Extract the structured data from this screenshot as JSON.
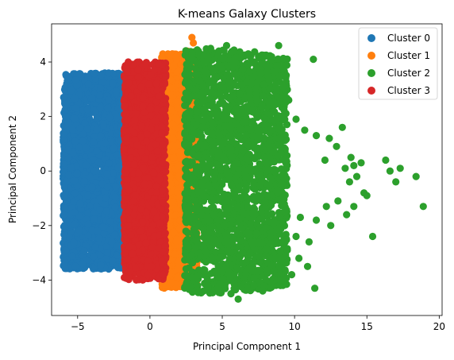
{
  "chart_data": {
    "type": "scatter",
    "title": "K-means Galaxy Clusters",
    "xlabel": "Principal Component 1",
    "ylabel": "Principal Component 2",
    "xlim": [
      -6.8,
      20.2
    ],
    "ylim": [
      -5.3,
      5.4
    ],
    "xticks": [
      -5,
      0,
      5,
      10,
      15,
      20
    ],
    "yticks": [
      -4,
      -2,
      0,
      2,
      4
    ],
    "grid": false,
    "legend_position": "top-right",
    "series": [
      {
        "name": "Cluster 0",
        "color": "#1f77b4",
        "region": {
          "x_min": -6.0,
          "x_max": -1.7,
          "y_min": -3.6,
          "y_max": 3.5,
          "x_center": -1.7
        },
        "outliers": [
          [
            -2.0,
            3.3
          ],
          [
            -1.9,
            -3.5
          ]
        ]
      },
      {
        "name": "Cluster 1",
        "color": "#ff7f0e",
        "region": {
          "x_min": 0.8,
          "x_max": 3.3,
          "y_min": -4.2,
          "y_max": 4.3,
          "x_center": 0.8
        },
        "outliers": [
          [
            2.9,
            4.9
          ],
          [
            3.0,
            4.7
          ],
          [
            2.6,
            4.4
          ],
          [
            1.2,
            -4.2
          ],
          [
            1.5,
            -4.1
          ]
        ]
      },
      {
        "name": "Cluster 2",
        "color": "#2ca02c",
        "region": {
          "x_min": 2.4,
          "x_max": 9.5,
          "y_min": -4.6,
          "y_max": 4.3,
          "x_center": 3.6
        },
        "outliers": [
          [
            5.3,
            4.6
          ],
          [
            6.8,
            4.3
          ],
          [
            8.9,
            4.6
          ],
          [
            11.3,
            4.1
          ],
          [
            4.2,
            4.5
          ],
          [
            9.2,
            3.1
          ],
          [
            9.6,
            2.6
          ],
          [
            10.1,
            1.9
          ],
          [
            10.7,
            1.5
          ],
          [
            11.5,
            1.3
          ],
          [
            12.4,
            1.2
          ],
          [
            13.3,
            1.6
          ],
          [
            12.1,
            0.4
          ],
          [
            12.9,
            0.9
          ],
          [
            13.9,
            0.5
          ],
          [
            13.5,
            0.1
          ],
          [
            14.1,
            0.2
          ],
          [
            14.6,
            0.3
          ],
          [
            13.8,
            -0.4
          ],
          [
            14.3,
            -0.2
          ],
          [
            14.8,
            -0.8
          ],
          [
            15.0,
            -0.9
          ],
          [
            16.3,
            0.4
          ],
          [
            16.6,
            0.0
          ],
          [
            17.0,
            -0.4
          ],
          [
            17.3,
            0.1
          ],
          [
            18.4,
            -0.2
          ],
          [
            18.9,
            -1.3
          ],
          [
            15.4,
            -2.4
          ],
          [
            14.1,
            -1.3
          ],
          [
            13.0,
            -1.1
          ],
          [
            12.2,
            -1.3
          ],
          [
            13.6,
            -1.6
          ],
          [
            12.5,
            -2.0
          ],
          [
            11.5,
            -1.8
          ],
          [
            10.4,
            -1.7
          ],
          [
            10.1,
            -2.4
          ],
          [
            11.0,
            -2.6
          ],
          [
            9.5,
            -2.9
          ],
          [
            10.3,
            -3.2
          ],
          [
            9.8,
            -3.8
          ],
          [
            11.4,
            -4.3
          ],
          [
            10.9,
            -3.5
          ],
          [
            9.0,
            -4.0
          ],
          [
            8.1,
            -3.7
          ],
          [
            7.8,
            -4.4
          ],
          [
            6.1,
            -4.7
          ],
          [
            5.6,
            -4.5
          ],
          [
            7.2,
            -4.2
          ]
        ]
      },
      {
        "name": "Cluster 3",
        "color": "#d62728",
        "region": {
          "x_min": -1.8,
          "x_max": 1.1,
          "y_min": -4.0,
          "y_max": 4.0,
          "x_center": -0.3
        },
        "outliers": [
          [
            -1.5,
            4.0
          ],
          [
            -0.3,
            3.9
          ],
          [
            -0.5,
            -4.0
          ],
          [
            0.9,
            -3.8
          ],
          [
            0.1,
            -3.5
          ]
        ]
      }
    ]
  }
}
